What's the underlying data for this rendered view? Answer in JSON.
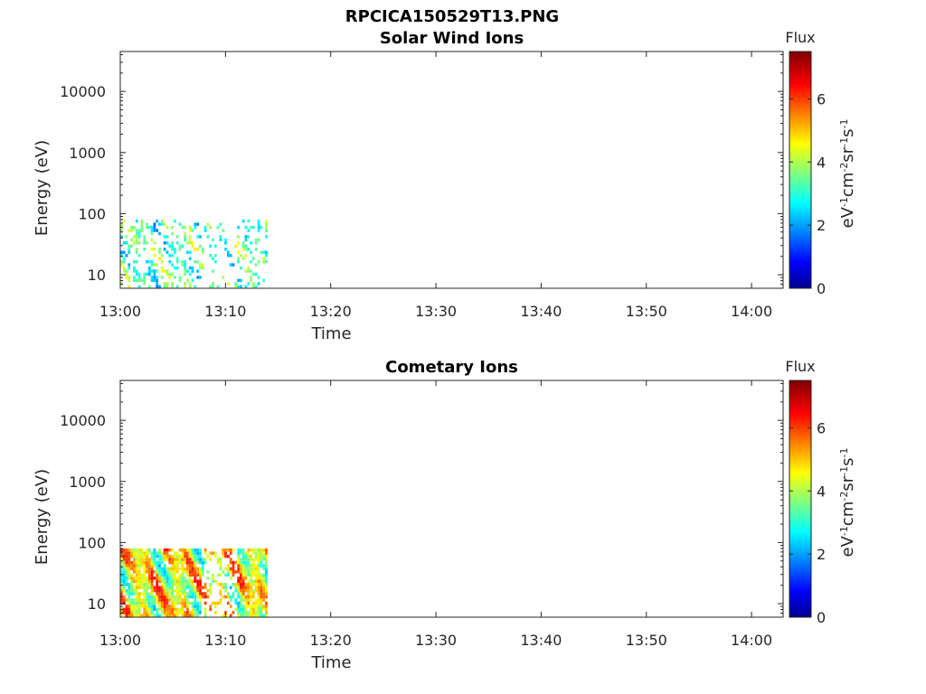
{
  "figure": {
    "title": "RPCICA150529T13.PNG"
  },
  "chart_data": [
    {
      "type": "heatmap",
      "title": "Solar Wind Ions",
      "xlabel": "Time",
      "ylabel": "Energy (eV)",
      "yscale": "log",
      "x_ticks": [
        "13:00",
        "13:10",
        "13:20",
        "13:30",
        "13:40",
        "13:50",
        "14:00"
      ],
      "y_ticks": [
        "10",
        "100",
        "1000",
        "10000"
      ],
      "xlim": [
        "13:00",
        "14:03"
      ],
      "ylim": [
        6,
        45000
      ],
      "colorbar": {
        "title": "Flux",
        "label": "eV-1cm-2sr-1s-1",
        "ticks": [
          "0",
          "2",
          "4",
          "6"
        ],
        "range": [
          0,
          7.5
        ],
        "colormap": "jet"
      },
      "data_extent": {
        "time_range": [
          "13:00",
          "13:14"
        ],
        "energy_range_eV": [
          6,
          80
        ],
        "flux_range": [
          1.5,
          4.8
        ]
      },
      "grid": false
    },
    {
      "type": "heatmap",
      "title": "Cometary Ions",
      "xlabel": "Time",
      "ylabel": "Energy (eV)",
      "yscale": "log",
      "x_ticks": [
        "13:00",
        "13:10",
        "13:20",
        "13:30",
        "13:40",
        "13:50",
        "14:00"
      ],
      "y_ticks": [
        "10",
        "100",
        "1000",
        "10000"
      ],
      "xlim": [
        "13:00",
        "14:03"
      ],
      "ylim": [
        6,
        45000
      ],
      "colorbar": {
        "title": "Flux",
        "label": "eV-1cm-2sr-1s-1",
        "ticks": [
          "0",
          "2",
          "4",
          "6"
        ],
        "range": [
          0,
          7.5
        ],
        "colormap": "jet"
      },
      "data_extent": {
        "time_range": [
          "13:00",
          "13:14"
        ],
        "energy_range_eV": [
          6,
          80
        ],
        "flux_range": [
          2,
          6.5
        ]
      },
      "grid": false
    }
  ]
}
